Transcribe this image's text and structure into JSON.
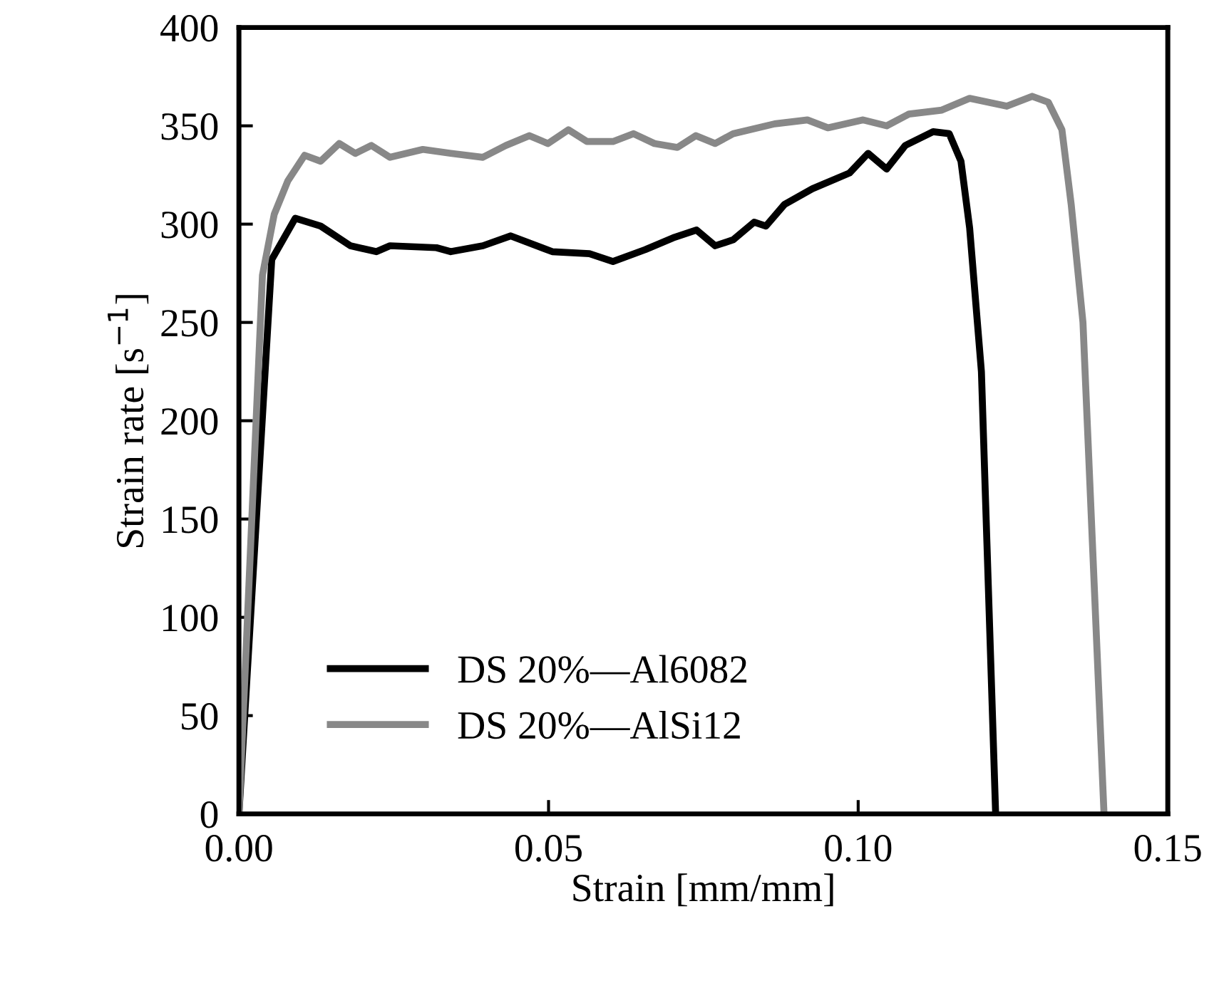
{
  "chart_data": {
    "type": "line",
    "xlabel": "Strain [mm/mm]",
    "ylabel": "Strain rate [s$^{−1}$]",
    "xlim": [
      0,
      0.15
    ],
    "ylim": [
      0,
      400
    ],
    "xticks": [
      {
        "value": 0,
        "label": "0.00"
      },
      0.05,
      {
        "value": 0.1,
        "label": "0.10"
      },
      0.15
    ],
    "yticks": [
      0,
      50,
      100,
      150,
      200,
      250,
      300,
      350,
      400
    ],
    "grid": false,
    "legend": "bottom left",
    "marker": "none",
    "line_style": "solid",
    "series": [
      {
        "name": "DS 20%—Al6082",
        "color": "#000000",
        "x": [
          0,
          0.0053,
          0.0091,
          0.0132,
          0.018,
          0.0222,
          0.0244,
          0.0319,
          0.0342,
          0.0394,
          0.0439,
          0.0506,
          0.0566,
          0.0604,
          0.0656,
          0.0701,
          0.0739,
          0.0769,
          0.0798,
          0.0832,
          0.0851,
          0.0881,
          0.0926,
          0.0986,
          0.1016,
          0.1046,
          0.1076,
          0.1121,
          0.1147,
          0.1166,
          0.118,
          0.1199,
          0.1222
        ],
        "values": [
          0,
          282,
          303,
          299,
          289,
          286,
          289,
          288,
          286,
          289,
          294,
          286,
          285,
          281,
          287,
          293,
          297,
          289,
          292,
          301,
          299,
          310,
          318,
          326,
          336,
          328,
          340,
          347,
          346,
          332,
          298,
          225,
          0
        ]
      },
      {
        "name": "DS 20%—AlSi12",
        "color": "#888888",
        "x": [
          0,
          0.0038,
          0.0057,
          0.0079,
          0.0106,
          0.0132,
          0.0162,
          0.0188,
          0.0214,
          0.0244,
          0.0297,
          0.0342,
          0.0394,
          0.0431,
          0.0469,
          0.0499,
          0.0532,
          0.0562,
          0.0604,
          0.0637,
          0.0671,
          0.0708,
          0.0738,
          0.0769,
          0.0798,
          0.0865,
          0.0918,
          0.0951,
          0.1008,
          0.1046,
          0.1082,
          0.1135,
          0.118,
          0.124,
          0.1281,
          0.1307,
          0.1329,
          0.1344,
          0.1363,
          0.1397
        ],
        "values": [
          0,
          274,
          305,
          322,
          335,
          332,
          341,
          336,
          340,
          334,
          338,
          336,
          334,
          340,
          345,
          341,
          348,
          342,
          342,
          346,
          341,
          339,
          345,
          341,
          346,
          351,
          353,
          349,
          353,
          350,
          356,
          358,
          364,
          360,
          365,
          362,
          348,
          310,
          250,
          0
        ]
      }
    ]
  }
}
